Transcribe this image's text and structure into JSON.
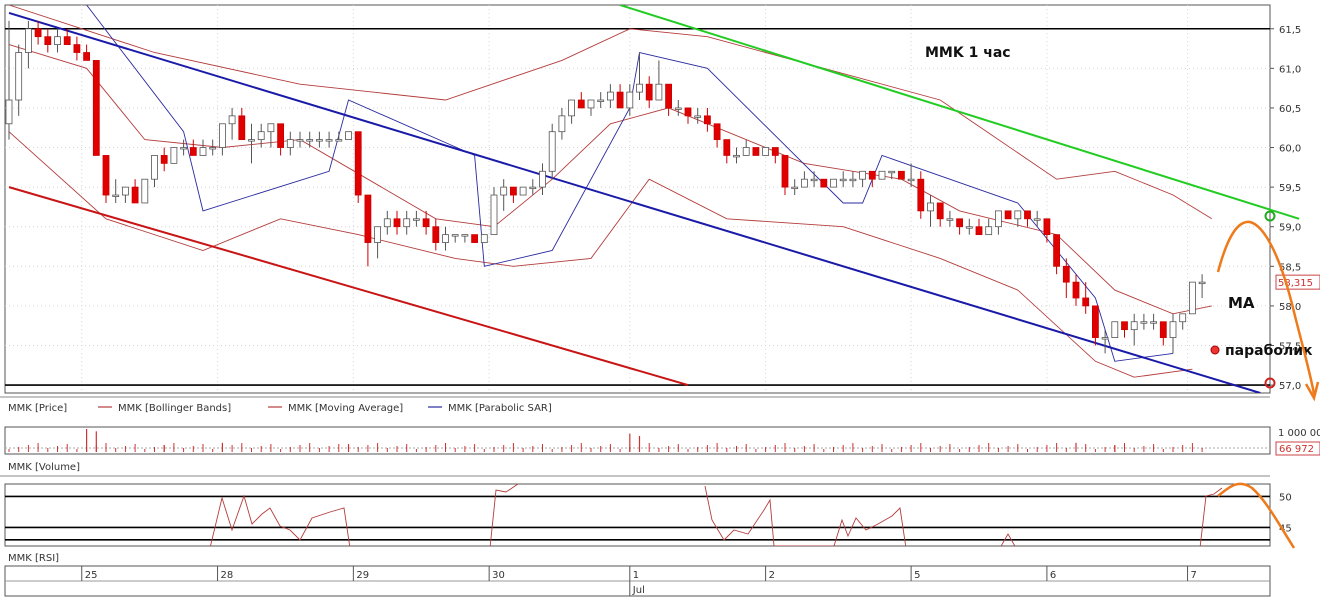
{
  "chart_data": [
    {
      "type": "candlestick",
      "symbol": "MMK",
      "title": "MMK   1 час",
      "y_ticks": [
        "61,5",
        "61,0",
        "60,5",
        "60,0",
        "59,5",
        "59,0",
        "58,5",
        "58,0",
        "57,5",
        "57,0"
      ],
      "ylim": [
        56.9,
        61.8
      ],
      "last_price_label": "58,315",
      "legend": [
        "MMK [Price]",
        "MMK [Bollinger Bands]",
        "MMK [Moving Average]",
        "MMK [Parabolic SAR]"
      ],
      "x_day_labels": [
        "25",
        "28",
        "29",
        "30",
        "1",
        "2",
        "5",
        "6",
        "7"
      ],
      "x_month_label": "Jul",
      "horizontal_levels": [
        61.5,
        57.0
      ],
      "candles": [
        [
          60.3,
          61.6,
          60.1,
          60.6
        ],
        [
          60.6,
          61.3,
          60.4,
          61.2
        ],
        [
          61.2,
          61.6,
          61.0,
          61.5
        ],
        [
          61.5,
          61.6,
          61.3,
          61.4
        ],
        [
          61.4,
          61.5,
          61.2,
          61.3
        ],
        [
          61.3,
          61.5,
          61.2,
          61.4
        ],
        [
          61.4,
          61.5,
          61.3,
          61.3
        ],
        [
          61.3,
          61.4,
          61.1,
          61.2
        ],
        [
          61.2,
          61.3,
          61.1,
          61.1
        ],
        [
          61.1,
          61.1,
          59.9,
          59.9
        ],
        [
          59.9,
          59.9,
          59.3,
          59.4
        ],
        [
          59.4,
          59.6,
          59.3,
          59.4
        ],
        [
          59.4,
          59.5,
          59.3,
          59.5
        ],
        [
          59.5,
          59.6,
          59.3,
          59.3
        ],
        [
          59.3,
          59.6,
          59.3,
          59.6
        ],
        [
          59.6,
          59.9,
          59.5,
          59.9
        ],
        [
          59.9,
          60.0,
          59.7,
          59.8
        ],
        [
          59.8,
          60.0,
          59.8,
          60.0
        ],
        [
          60.0,
          60.1,
          59.9,
          60.0
        ],
        [
          60.0,
          60.1,
          59.9,
          59.9
        ],
        [
          59.9,
          60.1,
          59.9,
          60.0
        ],
        [
          60.0,
          60.1,
          59.9,
          60.0
        ],
        [
          60.0,
          60.3,
          59.9,
          60.3
        ],
        [
          60.3,
          60.5,
          60.1,
          60.4
        ],
        [
          60.4,
          60.5,
          60.1,
          60.1
        ],
        [
          60.1,
          60.3,
          59.8,
          60.1
        ],
        [
          60.1,
          60.3,
          60.0,
          60.2
        ],
        [
          60.2,
          60.3,
          60.0,
          60.3
        ],
        [
          60.3,
          60.3,
          59.9,
          60.0
        ],
        [
          60.0,
          60.2,
          59.9,
          60.1
        ],
        [
          60.1,
          60.2,
          60.0,
          60.1
        ],
        [
          60.1,
          60.2,
          60.0,
          60.1
        ],
        [
          60.1,
          60.2,
          60.0,
          60.1
        ],
        [
          60.1,
          60.2,
          60.0,
          60.1
        ],
        [
          60.1,
          60.2,
          60.1,
          60.1
        ],
        [
          60.1,
          60.2,
          60.1,
          60.2
        ],
        [
          60.2,
          60.2,
          59.3,
          59.4
        ],
        [
          59.4,
          59.4,
          58.5,
          58.8
        ],
        [
          58.8,
          59.0,
          58.6,
          59.0
        ],
        [
          59.0,
          59.2,
          58.9,
          59.1
        ],
        [
          59.1,
          59.2,
          58.9,
          59.0
        ],
        [
          59.0,
          59.2,
          58.9,
          59.1
        ],
        [
          59.1,
          59.2,
          59.0,
          59.1
        ],
        [
          59.1,
          59.2,
          58.9,
          59.0
        ],
        [
          59.0,
          59.1,
          58.7,
          58.8
        ],
        [
          58.8,
          59.0,
          58.7,
          58.9
        ],
        [
          58.9,
          58.9,
          58.8,
          58.9
        ],
        [
          58.9,
          58.9,
          58.8,
          58.9
        ],
        [
          58.9,
          58.9,
          58.8,
          58.8
        ],
        [
          58.8,
          58.9,
          58.8,
          58.9
        ],
        [
          58.9,
          59.5,
          58.9,
          59.4
        ],
        [
          59.4,
          59.6,
          59.2,
          59.5
        ],
        [
          59.5,
          59.5,
          59.3,
          59.4
        ],
        [
          59.4,
          59.5,
          59.4,
          59.5
        ],
        [
          59.5,
          59.6,
          59.4,
          59.5
        ],
        [
          59.5,
          59.8,
          59.4,
          59.7
        ],
        [
          59.7,
          60.3,
          59.6,
          60.2
        ],
        [
          60.2,
          60.5,
          60.1,
          60.4
        ],
        [
          60.4,
          60.6,
          60.3,
          60.6
        ],
        [
          60.6,
          60.7,
          60.5,
          60.5
        ],
        [
          60.5,
          60.6,
          60.4,
          60.6
        ],
        [
          60.6,
          60.7,
          60.5,
          60.6
        ],
        [
          60.6,
          60.8,
          60.5,
          60.7
        ],
        [
          60.7,
          60.8,
          60.5,
          60.5
        ],
        [
          60.5,
          60.8,
          60.4,
          60.7
        ],
        [
          60.7,
          61.2,
          60.6,
          60.8
        ],
        [
          60.8,
          60.9,
          60.5,
          60.6
        ],
        [
          60.6,
          61.1,
          60.6,
          60.8
        ],
        [
          60.8,
          60.8,
          60.4,
          60.5
        ],
        [
          60.5,
          60.6,
          60.4,
          60.5
        ],
        [
          60.5,
          60.5,
          60.3,
          60.4
        ],
        [
          60.4,
          60.5,
          60.3,
          60.4
        ],
        [
          60.4,
          60.5,
          60.2,
          60.3
        ],
        [
          60.3,
          60.3,
          60.0,
          60.1
        ],
        [
          60.1,
          60.1,
          59.8,
          59.9
        ],
        [
          59.9,
          60.0,
          59.8,
          59.9
        ],
        [
          59.9,
          60.1,
          59.9,
          60.0
        ],
        [
          60.0,
          60.0,
          59.9,
          59.9
        ],
        [
          59.9,
          60.0,
          59.9,
          60.0
        ],
        [
          60.0,
          60.0,
          59.8,
          59.9
        ],
        [
          59.9,
          59.9,
          59.4,
          59.5
        ],
        [
          59.5,
          59.6,
          59.4,
          59.5
        ],
        [
          59.5,
          59.7,
          59.5,
          59.6
        ],
        [
          59.6,
          59.7,
          59.5,
          59.6
        ],
        [
          59.6,
          59.6,
          59.5,
          59.5
        ],
        [
          59.5,
          59.6,
          59.5,
          59.6
        ],
        [
          59.6,
          59.7,
          59.5,
          59.6
        ],
        [
          59.6,
          59.7,
          59.5,
          59.6
        ],
        [
          59.6,
          59.7,
          59.5,
          59.7
        ],
        [
          59.7,
          59.7,
          59.5,
          59.6
        ],
        [
          59.6,
          59.7,
          59.6,
          59.7
        ],
        [
          59.7,
          59.7,
          59.6,
          59.7
        ],
        [
          59.7,
          59.7,
          59.6,
          59.6
        ],
        [
          59.6,
          59.8,
          59.5,
          59.6
        ],
        [
          59.6,
          59.7,
          59.1,
          59.2
        ],
        [
          59.2,
          59.4,
          59.0,
          59.3
        ],
        [
          59.3,
          59.3,
          59.0,
          59.1
        ],
        [
          59.1,
          59.2,
          59.0,
          59.1
        ],
        [
          59.1,
          59.1,
          58.9,
          59.0
        ],
        [
          59.0,
          59.1,
          58.9,
          59.0
        ],
        [
          59.0,
          59.1,
          58.9,
          58.9
        ],
        [
          58.9,
          59.1,
          58.9,
          59.0
        ],
        [
          59.0,
          59.2,
          58.9,
          59.2
        ],
        [
          59.2,
          59.2,
          59.1,
          59.1
        ],
        [
          59.1,
          59.2,
          59.0,
          59.2
        ],
        [
          59.2,
          59.2,
          59.0,
          59.1
        ],
        [
          59.1,
          59.2,
          59.0,
          59.1
        ],
        [
          59.1,
          59.1,
          58.8,
          58.9
        ],
        [
          58.9,
          58.9,
          58.4,
          58.5
        ],
        [
          58.5,
          58.6,
          58.1,
          58.3
        ],
        [
          58.3,
          58.4,
          58.0,
          58.1
        ],
        [
          58.1,
          58.3,
          57.9,
          58.0
        ],
        [
          58.0,
          58.0,
          57.5,
          57.6
        ],
        [
          57.6,
          57.7,
          57.4,
          57.6
        ],
        [
          57.6,
          57.8,
          57.6,
          57.8
        ],
        [
          57.8,
          57.8,
          57.6,
          57.7
        ],
        [
          57.7,
          57.9,
          57.5,
          57.8
        ],
        [
          57.8,
          57.9,
          57.7,
          57.8
        ],
        [
          57.8,
          57.9,
          57.7,
          57.8
        ],
        [
          57.8,
          57.8,
          57.5,
          57.6
        ],
        [
          57.6,
          57.9,
          57.4,
          57.8
        ],
        [
          57.8,
          57.9,
          57.7,
          57.9
        ],
        [
          57.9,
          58.3,
          57.9,
          58.3
        ],
        [
          58.3,
          58.4,
          58.1,
          58.3
        ]
      ],
      "bollinger_upper": [
        [
          0,
          61.8
        ],
        [
          15,
          61.2
        ],
        [
          30,
          60.8
        ],
        [
          45,
          60.6
        ],
        [
          57,
          61.1
        ],
        [
          64,
          61.5
        ],
        [
          72,
          61.4
        ],
        [
          84,
          61.0
        ],
        [
          96,
          60.6
        ],
        [
          108,
          59.6
        ],
        [
          114,
          59.7
        ],
        [
          120,
          59.4
        ],
        [
          124,
          59.1
        ]
      ],
      "bollinger_lower": [
        [
          0,
          60.2
        ],
        [
          10,
          59.1
        ],
        [
          20,
          58.7
        ],
        [
          28,
          59.1
        ],
        [
          36,
          58.9
        ],
        [
          46,
          58.6
        ],
        [
          52,
          58.5
        ],
        [
          60,
          58.6
        ],
        [
          66,
          59.6
        ],
        [
          74,
          59.1
        ],
        [
          86,
          59.0
        ],
        [
          96,
          58.6
        ],
        [
          104,
          58.2
        ],
        [
          112,
          57.3
        ],
        [
          116,
          57.1
        ],
        [
          122,
          57.2
        ]
      ],
      "moving_average": [
        [
          0,
          61.3
        ],
        [
          8,
          61.0
        ],
        [
          14,
          60.1
        ],
        [
          22,
          60.0
        ],
        [
          30,
          60.1
        ],
        [
          37,
          59.6
        ],
        [
          44,
          59.1
        ],
        [
          50,
          59.0
        ],
        [
          56,
          59.6
        ],
        [
          62,
          60.3
        ],
        [
          68,
          60.5
        ],
        [
          74,
          60.2
        ],
        [
          82,
          59.8
        ],
        [
          92,
          59.6
        ],
        [
          98,
          59.2
        ],
        [
          108,
          58.9
        ],
        [
          114,
          58.2
        ],
        [
          120,
          57.9
        ],
        [
          124,
          58.0
        ]
      ],
      "parabolic_sar": [
        [
          8,
          61.8
        ],
        [
          18,
          60.2
        ],
        [
          20,
          59.2
        ],
        [
          33,
          59.7
        ],
        [
          35,
          60.6
        ],
        [
          48,
          59.9
        ],
        [
          49,
          58.5
        ],
        [
          56,
          58.7
        ],
        [
          64,
          60.5
        ],
        [
          65,
          61.2
        ],
        [
          72,
          61.0
        ],
        [
          86,
          59.3
        ],
        [
          88,
          59.3
        ],
        [
          90,
          59.9
        ],
        [
          104,
          59.3
        ],
        [
          112,
          58.1
        ],
        [
          114,
          57.3
        ],
        [
          120,
          57.4
        ]
      ],
      "trendlines": [
        {
          "color": "#1a1aa8",
          "from": [
            0,
            61.7
          ],
          "to": [
            129,
            56.9
          ]
        },
        {
          "color": "#c81414",
          "from": [
            0,
            59.5
          ],
          "to": [
            70,
            57.0
          ]
        },
        {
          "color": "#22cc22",
          "from": [
            63,
            61.8
          ],
          "to": [
            133,
            59.1
          ]
        }
      ],
      "annotations": {
        "title": "MMK   1 час",
        "ma": "MA",
        "parabolic": "параболик"
      }
    },
    {
      "type": "bar",
      "name": "MMK [Volume]",
      "y_ticks": [
        "1 000 00",
        "66 972"
      ],
      "spikes": [
        [
          8,
          1.0
        ],
        [
          9,
          0.9
        ],
        [
          16,
          0.3
        ],
        [
          22,
          0.4
        ],
        [
          35,
          0.35
        ],
        [
          64,
          0.8
        ],
        [
          65,
          0.7
        ],
        [
          110,
          0.4
        ],
        [
          114,
          0.3
        ]
      ]
    },
    {
      "type": "line",
      "name": "MMK [RSI]",
      "y_ticks": [
        "50",
        "45"
      ],
      "levels": [
        50,
        45,
        43
      ]
    }
  ]
}
